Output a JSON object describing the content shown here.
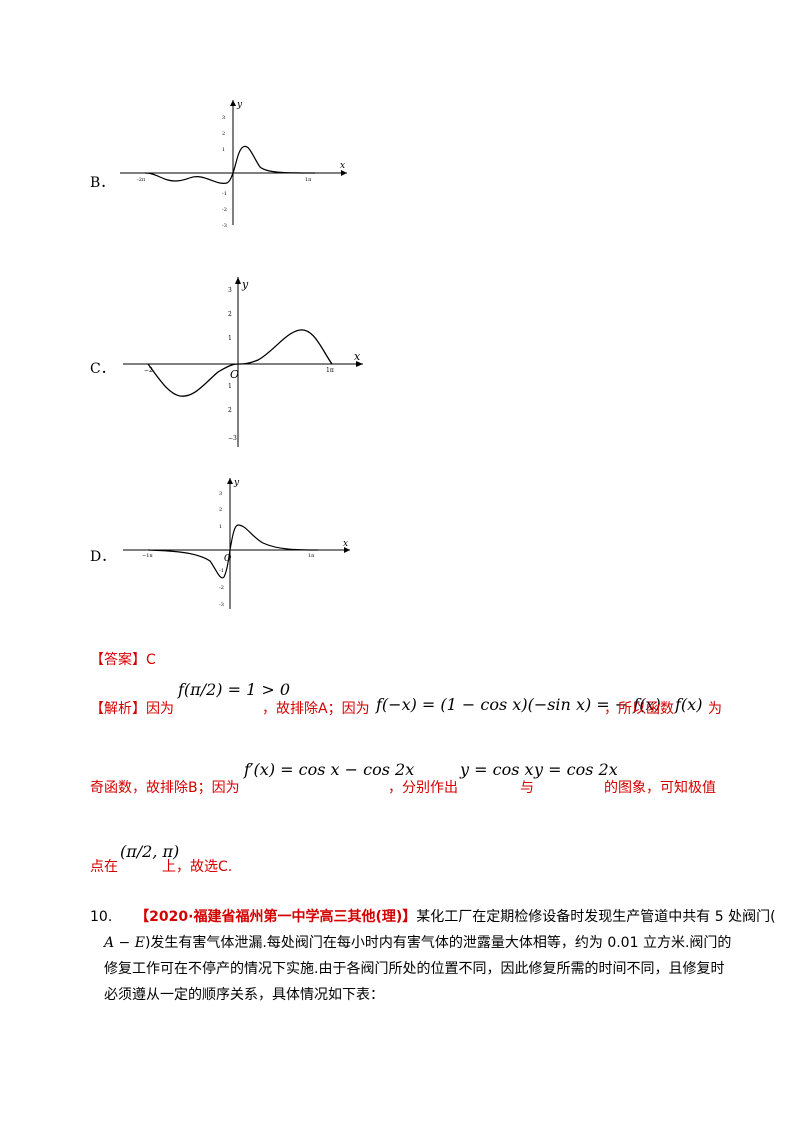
{
  "options": {
    "b": {
      "label": "B．"
    },
    "c": {
      "label": "C．"
    },
    "d": {
      "label": "D．"
    }
  },
  "graphs": {
    "b": {
      "y": "y",
      "x": "x",
      "origin": "",
      "ticks_y": [
        "3",
        "2",
        "1",
        "-1",
        "-2",
        "-3"
      ],
      "left": "-2π",
      "right": "1π"
    },
    "c": {
      "y": "y",
      "x": "x",
      "origin": "O",
      "ticks_y": [
        "3",
        "2",
        "1",
        "1",
        "2",
        "−3"
      ],
      "left": "−2",
      "right": "1π"
    },
    "d": {
      "y": "y",
      "x": "x",
      "origin": "O",
      "ticks_y": [
        "3",
        "2",
        "1",
        "-1",
        "-2",
        "-3"
      ],
      "left": "−1π",
      "right": "1π"
    }
  },
  "answer": {
    "prefix": "【答案】",
    "value": "C"
  },
  "analysis": {
    "prefix": "【解析】",
    "t1": "因为",
    "m1": "f(π/2) = 1 > 0",
    "t2": "，故排除A；因为",
    "m2": "f(−x) = (1 − cos x)(−sin x) = − f(x)",
    "t3": "，所以函数",
    "m3": "f(x)",
    "t4": "为",
    "t5": "奇函数，故排除B；因为",
    "m4": "f′(x) = cos x − cos 2x",
    "t6": "，分别作出",
    "m5": "y = cos x",
    "t7": "与",
    "m6": "y = cos 2x",
    "t8": "的图象，可知极值",
    "t9": "点在",
    "m7": "(π/2, π)",
    "t10": "上，故选C."
  },
  "question": {
    "number": "10.",
    "source": "【2020·福建省福州第一中学高三其他(理)】",
    "line1": "某化工厂在定期检修设备时发现生产管道中共有 5 处阀门(",
    "var": "A − E",
    "line2": ")发生有害气体泄漏.每处阀门在每小时内有害气体的泄露量大体相等，约为 0.01 立方米.阀门的",
    "line3": "修复工作可在不停产的情况下实施.由于各阀门所处的位置不同，因此修复所需的时间不同，且修复时",
    "line4": "必须遵从一定的顺序关系，具体情况如下表："
  }
}
